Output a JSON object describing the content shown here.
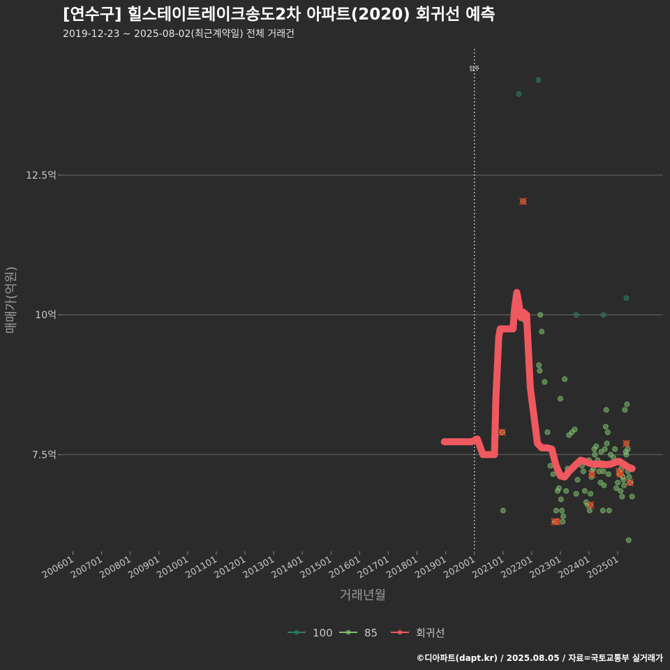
{
  "header": {
    "title": "[연수구] 힐스테이트레이크송도2차 아파트(2020) 회귀선 예측",
    "subtitle": "2019-12-23 ~ 2025-08-02(최근계약일) 전체 거래건"
  },
  "caption": "©디아파트(dapt.kr) / 2025.08.05 / 자료=국토교통부 실거래가",
  "colors": {
    "background": "#2b2b2b",
    "grid": "#555555",
    "series_100": "#2e7d6b",
    "series_85": "#7fbf6e",
    "regression": "#f0585f",
    "highlight_x": "#d8342c"
  },
  "chart_data": {
    "type": "scatter",
    "xlabel": "거래년월",
    "ylabel": "매매가(억원)",
    "xlim": [
      2005.6,
      2026.7
    ],
    "ylim": [
      5.77,
      14.82
    ],
    "x_ticks": [
      {
        "x": 2006.0,
        "label": "200601"
      },
      {
        "x": 2007.0,
        "label": "200701"
      },
      {
        "x": 2008.0,
        "label": "200801"
      },
      {
        "x": 2009.0,
        "label": "200901"
      },
      {
        "x": 2010.0,
        "label": "201001"
      },
      {
        "x": 2011.0,
        "label": "201101"
      },
      {
        "x": 2012.0,
        "label": "201201"
      },
      {
        "x": 2013.0,
        "label": "201301"
      },
      {
        "x": 2014.0,
        "label": "201401"
      },
      {
        "x": 2015.0,
        "label": "201501"
      },
      {
        "x": 2016.0,
        "label": "201601"
      },
      {
        "x": 2017.0,
        "label": "201701"
      },
      {
        "x": 2018.0,
        "label": "201801"
      },
      {
        "x": 2019.0,
        "label": "201901"
      },
      {
        "x": 2020.0,
        "label": "202001"
      },
      {
        "x": 2021.0,
        "label": "202101"
      },
      {
        "x": 2022.0,
        "label": "202201"
      },
      {
        "x": 2023.0,
        "label": "202301"
      },
      {
        "x": 2024.0,
        "label": "202401"
      },
      {
        "x": 2025.0,
        "label": "202501"
      }
    ],
    "y_ticks": [
      {
        "y": 7.5,
        "label": "7.5억"
      },
      {
        "y": 10,
        "label": "10억"
      },
      {
        "y": 12.5,
        "label": "12.5억"
      }
    ],
    "annotation": {
      "x": 2020.0,
      "label": "입주"
    },
    "legend": [
      {
        "key": "100",
        "label": "100"
      },
      {
        "key": "85",
        "label": "85"
      },
      {
        "key": "reg",
        "label": "회귀선"
      }
    ],
    "series": [
      {
        "name": "100",
        "points": [
          [
            2021.55,
            13.95
          ],
          [
            2022.23,
            14.2
          ],
          [
            2023.55,
            10.0
          ],
          [
            2024.5,
            10.0
          ],
          [
            2025.3,
            10.3
          ]
        ]
      },
      {
        "name": "85",
        "points": [
          [
            2020.97,
            7.9
          ],
          [
            2021.0,
            6.5
          ],
          [
            2021.65,
            10.0
          ],
          [
            2021.75,
            9.9
          ],
          [
            2022.3,
            10.0
          ],
          [
            2022.25,
            9.1
          ],
          [
            2022.28,
            9.0
          ],
          [
            2022.35,
            9.7
          ],
          [
            2022.45,
            8.8
          ],
          [
            2022.55,
            7.9
          ],
          [
            2022.65,
            7.3
          ],
          [
            2022.75,
            7.15
          ],
          [
            2022.8,
            6.3
          ],
          [
            2022.85,
            6.5
          ],
          [
            2022.9,
            6.85
          ],
          [
            2022.95,
            6.9
          ],
          [
            2023.0,
            8.5
          ],
          [
            2023.02,
            6.7
          ],
          [
            2023.05,
            6.5
          ],
          [
            2023.08,
            6.3
          ],
          [
            2023.1,
            6.4
          ],
          [
            2023.15,
            8.85
          ],
          [
            2023.2,
            6.85
          ],
          [
            2023.25,
            7.25
          ],
          [
            2023.3,
            7.85
          ],
          [
            2023.4,
            7.9
          ],
          [
            2023.5,
            7.95
          ],
          [
            2023.55,
            6.8
          ],
          [
            2023.6,
            7.05
          ],
          [
            2023.7,
            7.4
          ],
          [
            2023.75,
            7.3
          ],
          [
            2023.8,
            7.2
          ],
          [
            2023.85,
            6.85
          ],
          [
            2023.9,
            6.65
          ],
          [
            2023.95,
            6.6
          ],
          [
            2024.0,
            7.4
          ],
          [
            2024.02,
            6.5
          ],
          [
            2024.05,
            6.8
          ],
          [
            2024.08,
            7.1
          ],
          [
            2024.1,
            7.2
          ],
          [
            2024.15,
            7.25
          ],
          [
            2024.18,
            7.6
          ],
          [
            2024.2,
            7.5
          ],
          [
            2024.25,
            7.65
          ],
          [
            2024.3,
            7.4
          ],
          [
            2024.35,
            7.2
          ],
          [
            2024.4,
            7.0
          ],
          [
            2024.42,
            7.55
          ],
          [
            2024.45,
            7.3
          ],
          [
            2024.48,
            6.5
          ],
          [
            2024.5,
            7.2
          ],
          [
            2024.52,
            6.95
          ],
          [
            2024.55,
            7.6
          ],
          [
            2024.58,
            8.0
          ],
          [
            2024.6,
            8.3
          ],
          [
            2024.62,
            7.7
          ],
          [
            2024.65,
            7.9
          ],
          [
            2024.68,
            7.15
          ],
          [
            2024.7,
            6.5
          ],
          [
            2024.75,
            7.5
          ],
          [
            2024.8,
            7.35
          ],
          [
            2024.85,
            7.45
          ],
          [
            2024.9,
            7.6
          ],
          [
            2024.95,
            6.9
          ],
          [
            2025.0,
            7.0
          ],
          [
            2025.05,
            7.15
          ],
          [
            2025.1,
            6.85
          ],
          [
            2025.12,
            7.25
          ],
          [
            2025.15,
            6.75
          ],
          [
            2025.18,
            7.1
          ],
          [
            2025.2,
            7.05
          ],
          [
            2025.22,
            6.95
          ],
          [
            2025.25,
            8.3
          ],
          [
            2025.28,
            7.55
          ],
          [
            2025.3,
            7.5
          ],
          [
            2025.32,
            8.4
          ],
          [
            2025.35,
            7.2
          ],
          [
            2025.38,
            5.97
          ],
          [
            2025.4,
            7.1
          ],
          [
            2025.45,
            7.0
          ],
          [
            2025.5,
            6.75
          ],
          [
            2025.35,
            7.6
          ]
        ]
      }
    ],
    "highlighted": [
      [
        2020.97,
        7.9
      ],
      [
        2021.7,
        12.03
      ],
      [
        2022.8,
        6.3
      ],
      [
        2022.88,
        6.3
      ],
      [
        2024.05,
        6.6
      ],
      [
        2024.1,
        7.15
      ],
      [
        2025.05,
        7.2
      ],
      [
        2025.1,
        7.15
      ],
      [
        2025.3,
        7.7
      ],
      [
        2025.42,
        7.0
      ]
    ],
    "regression": {
      "name": "회귀선",
      "points": [
        [
          2018.95,
          7.73
        ],
        [
          2019.9,
          7.73
        ],
        [
          2020.1,
          7.78
        ],
        [
          2020.3,
          7.5
        ],
        [
          2020.4,
          7.5
        ],
        [
          2020.7,
          7.5
        ],
        [
          2020.75,
          8.5
        ],
        [
          2020.85,
          9.6
        ],
        [
          2020.9,
          9.75
        ],
        [
          2021.2,
          9.75
        ],
        [
          2021.35,
          9.75
        ],
        [
          2021.4,
          10.1
        ],
        [
          2021.48,
          10.4
        ],
        [
          2021.55,
          10.2
        ],
        [
          2021.62,
          9.95
        ],
        [
          2021.7,
          10.05
        ],
        [
          2021.82,
          10.0
        ],
        [
          2021.95,
          8.7
        ],
        [
          2022.05,
          8.3
        ],
        [
          2022.2,
          7.7
        ],
        [
          2022.35,
          7.62
        ],
        [
          2022.55,
          7.62
        ],
        [
          2022.7,
          7.6
        ],
        [
          2022.85,
          7.3
        ],
        [
          2023.0,
          7.12
        ],
        [
          2023.15,
          7.1
        ],
        [
          2023.3,
          7.2
        ],
        [
          2023.5,
          7.3
        ],
        [
          2023.7,
          7.4
        ],
        [
          2023.85,
          7.38
        ],
        [
          2024.0,
          7.35
        ],
        [
          2024.15,
          7.33
        ],
        [
          2024.3,
          7.33
        ],
        [
          2024.45,
          7.33
        ],
        [
          2024.6,
          7.32
        ],
        [
          2024.75,
          7.33
        ],
        [
          2024.9,
          7.36
        ],
        [
          2025.05,
          7.38
        ],
        [
          2025.2,
          7.33
        ],
        [
          2025.35,
          7.28
        ],
        [
          2025.45,
          7.26
        ],
        [
          2025.5,
          7.25
        ]
      ]
    }
  }
}
